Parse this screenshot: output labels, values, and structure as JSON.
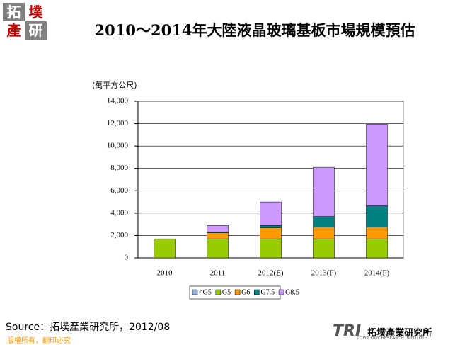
{
  "logo": [
    "拓",
    "墣",
    "產",
    "研"
  ],
  "source": "Source：拓墣產業研究所，2012/08",
  "copyright": "版權所有，翻印必究",
  "footer_logo": {
    "mark": "TRI",
    "name": "拓墣產業研究所",
    "subtitle": "TOPOLOGY RESEARCH INSTITUTE"
  },
  "chart_data": {
    "type": "stacked-bar",
    "title": "2010～2014年大陸液晶玻璃基板市場規模預估",
    "y_label": "(萬平方公尺)",
    "categories": [
      "2010",
      "2011",
      "2012(E)",
      "2013(F)",
      "2014(F)"
    ],
    "series": [
      {
        "name": "<G5",
        "color": "#8db4e2",
        "values": [
          0,
          0,
          0,
          0,
          0
        ]
      },
      {
        "name": "G5",
        "color": "#99cc00",
        "values": [
          1700,
          1700,
          1700,
          1700,
          1700
        ]
      },
      {
        "name": "G6",
        "color": "#ff9900",
        "values": [
          0,
          550,
          1000,
          1050,
          1050
        ]
      },
      {
        "name": "G7.5",
        "color": "#008080",
        "values": [
          0,
          50,
          200,
          950,
          1900
        ]
      },
      {
        "name": "G8.5",
        "color": "#cc99ff",
        "values": [
          0,
          600,
          2100,
          4400,
          7300
        ]
      }
    ],
    "ylim": [
      0,
      14000
    ],
    "yticks": [
      0,
      {
        "value": 2000,
        "label": "2,000"
      },
      {
        "value": 4000,
        "label": "4,000"
      },
      {
        "value": 6000,
        "label": "6,000"
      },
      {
        "value": 8000,
        "label": "8,000"
      },
      {
        "value": 10000,
        "label": "10,000"
      },
      {
        "value": 12000,
        "label": "12,000"
      },
      {
        "value": 14000,
        "label": "14,000"
      }
    ],
    "grid": true,
    "legend": "bottom"
  }
}
